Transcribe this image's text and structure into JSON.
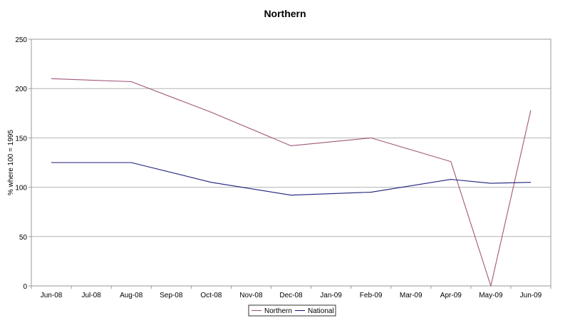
{
  "chart_data": {
    "type": "line",
    "title": "Northern",
    "xlabel": "",
    "ylabel": "% where 100 = 1995",
    "categories": [
      "Jun-08",
      "Jul-08",
      "Aug-08",
      "Sep-08",
      "Oct-08",
      "Nov-08",
      "Dec-08",
      "Jan-09",
      "Feb-09",
      "Mar-09",
      "Apr-09",
      "May-09",
      "Jun-09"
    ],
    "ylim": [
      0,
      250
    ],
    "yticks": [
      0,
      50,
      100,
      150,
      200,
      250
    ],
    "grid": true,
    "legend_position": "bottom",
    "series": [
      {
        "name": "Northern",
        "color": "#a0577a",
        "points": [
          {
            "category": "Jun-08",
            "value": 210
          },
          {
            "category": "Aug-08",
            "value": 207
          },
          {
            "category": "Oct-08",
            "value": 176
          },
          {
            "category": "Dec-08",
            "value": 142
          },
          {
            "category": "Feb-09",
            "value": 150
          },
          {
            "category": "Apr-09",
            "value": 126
          },
          {
            "category": "May-09",
            "value": 0
          },
          {
            "category": "Jun-09",
            "value": 178
          }
        ]
      },
      {
        "name": "National",
        "color": "#1c1f7a",
        "points": [
          {
            "category": "Jun-08",
            "value": 125
          },
          {
            "category": "Aug-08",
            "value": 125
          },
          {
            "category": "Oct-08",
            "value": 105
          },
          {
            "category": "Dec-08",
            "value": 92
          },
          {
            "category": "Feb-09",
            "value": 95
          },
          {
            "category": "Apr-09",
            "value": 108
          },
          {
            "category": "May-09",
            "value": 104
          },
          {
            "category": "Jun-09",
            "value": 105
          }
        ]
      }
    ]
  }
}
